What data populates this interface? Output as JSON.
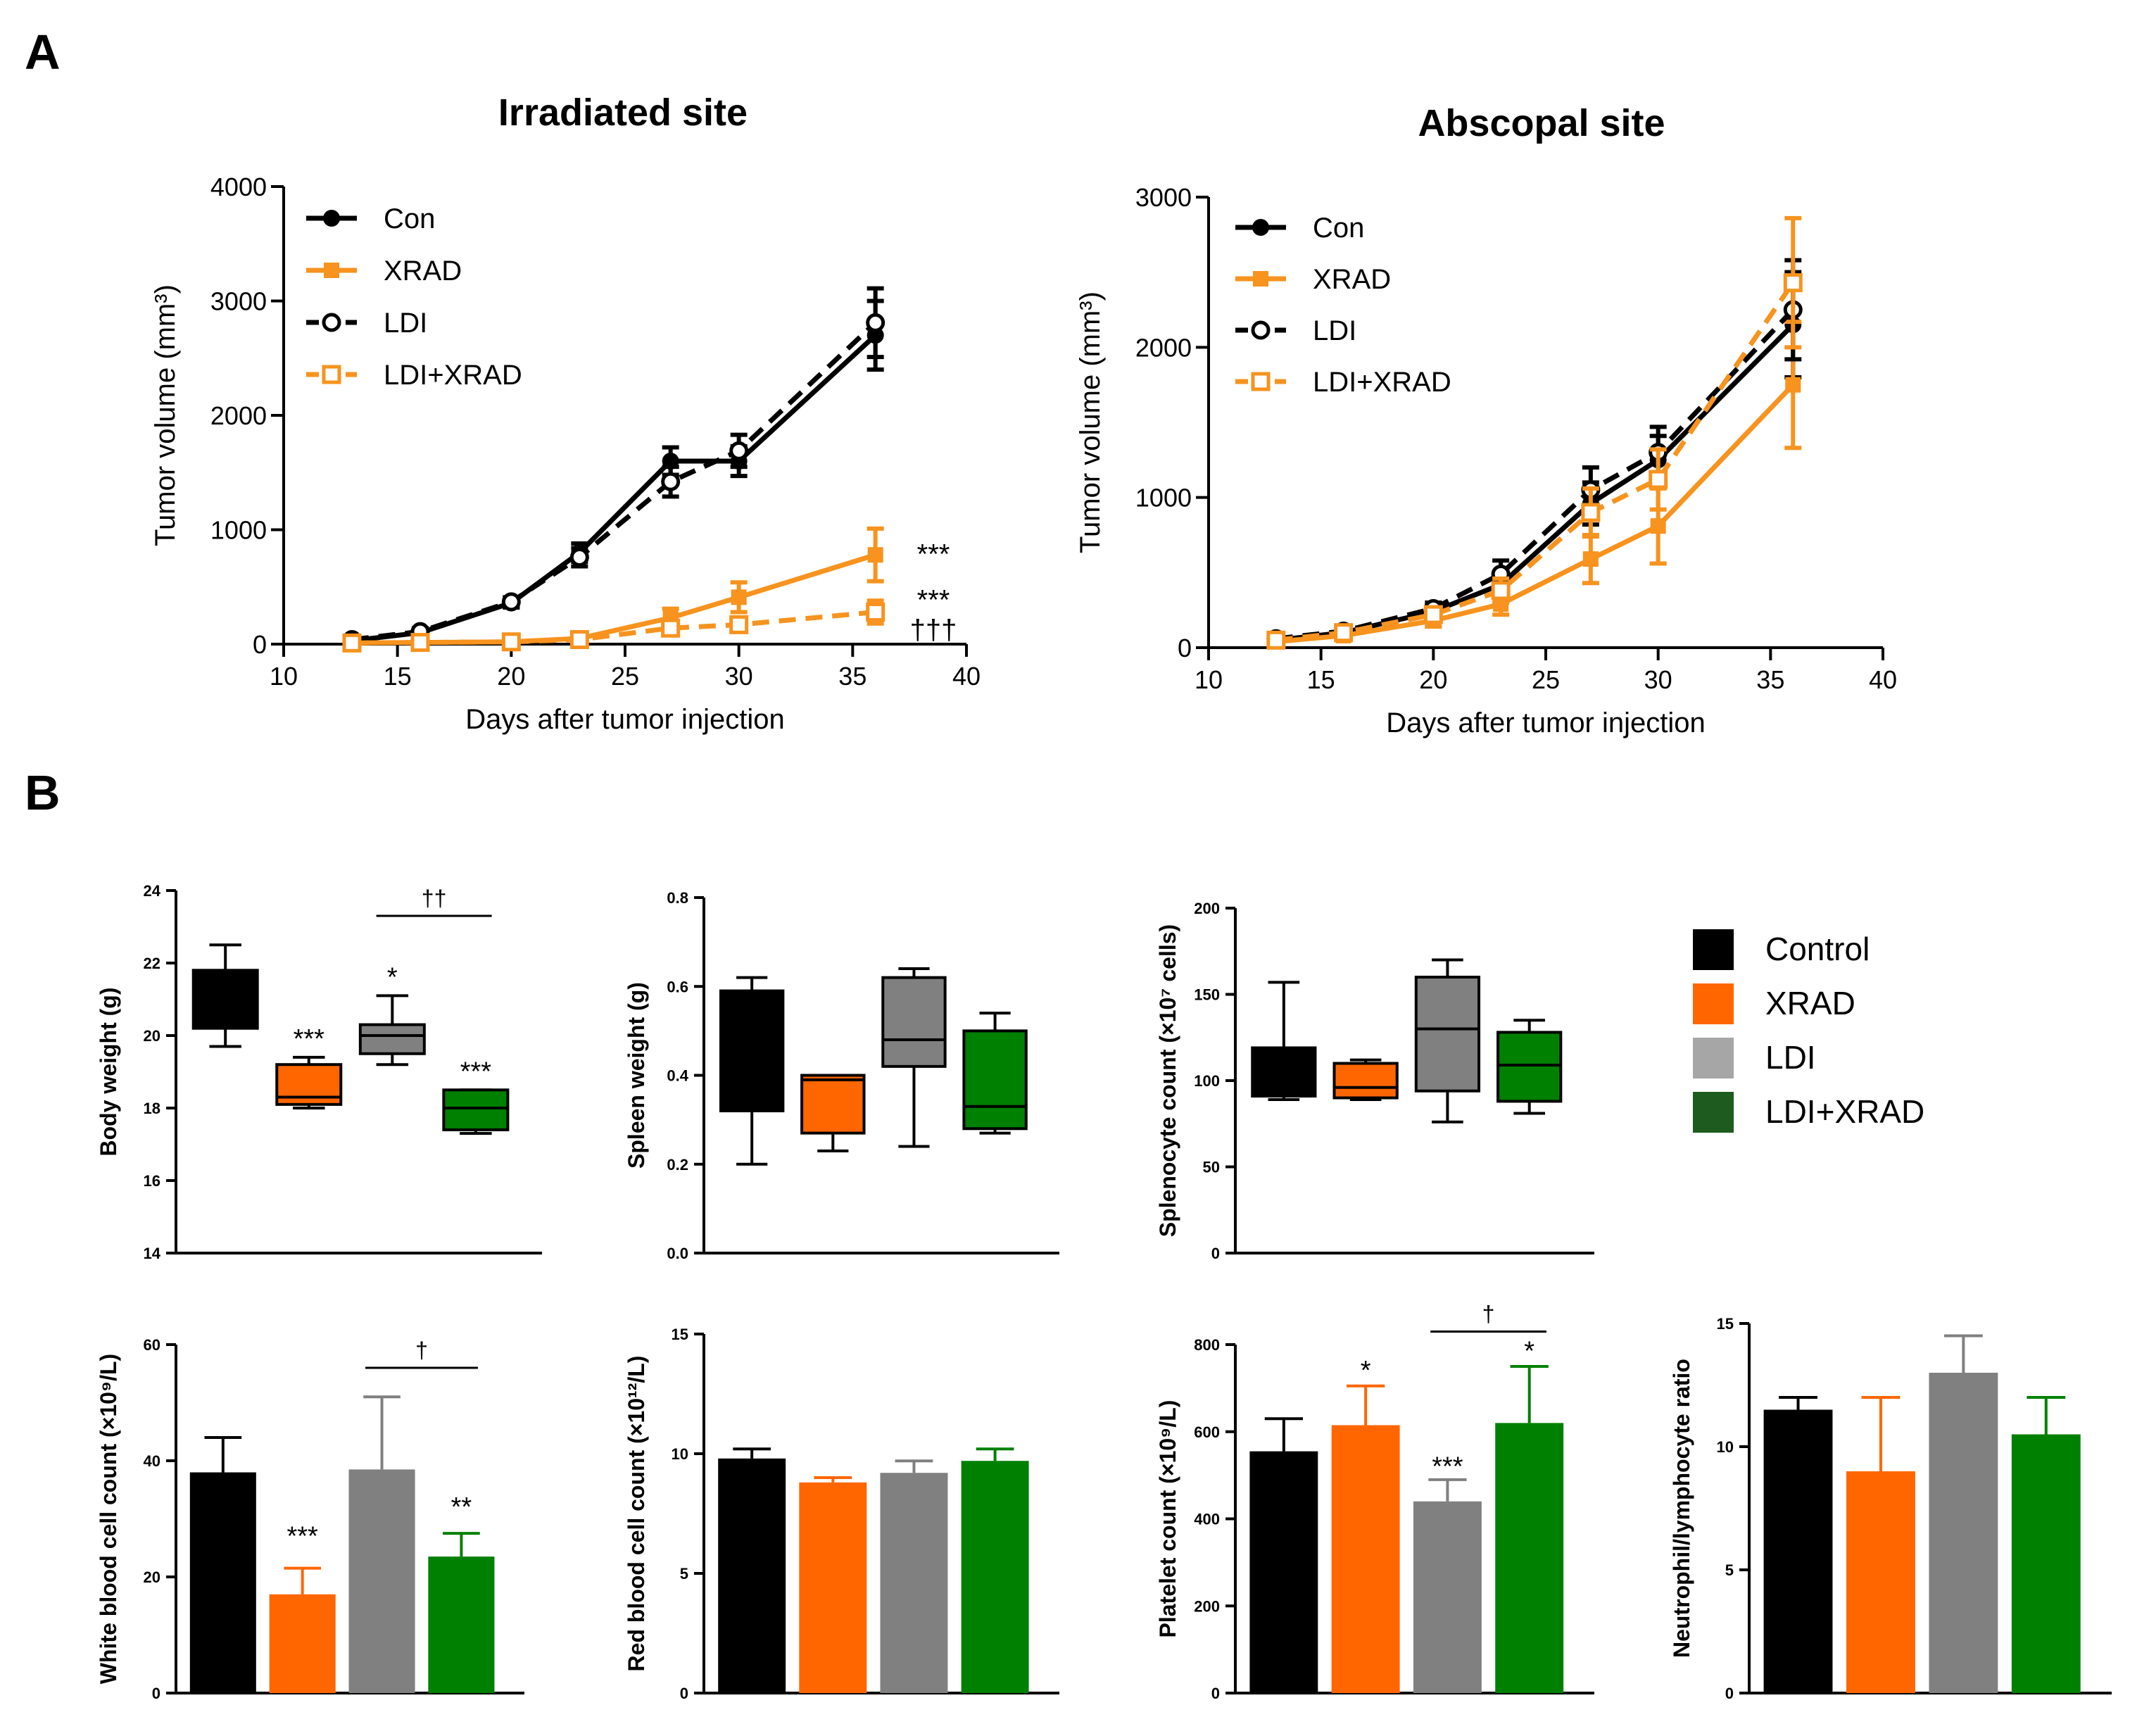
{
  "colors": {
    "con": "#000000",
    "xrad": "#F7931E",
    "bx_control": "#000000",
    "bx_xrad": "#FF6600",
    "bx_ldi": "#808080",
    "bx_ldixrad": "#008000",
    "legend_ldi": "#A6A6A6",
    "legend_ldixrad": "#1E5B1E"
  },
  "panel_labels": {
    "a": "A",
    "b": "B"
  },
  "legend_b": {
    "items": [
      {
        "label": "Control",
        "color_key": "bx_control"
      },
      {
        "label": "XRAD",
        "color_key": "bx_xrad"
      },
      {
        "label": "LDI",
        "color_key": "legend_ldi"
      },
      {
        "label": "LDI+XRAD",
        "color_key": "legend_ldixrad"
      }
    ]
  },
  "chart_data": [
    {
      "id": "irr",
      "type": "line",
      "title": "Irradiated site",
      "xlabel": "Days after tumor injection",
      "ylabel": "Tumor volume (mm³)",
      "xlim": [
        10,
        40
      ],
      "ylim": [
        0,
        4000
      ],
      "xticks": [
        10,
        15,
        20,
        25,
        30,
        35,
        40
      ],
      "yticks": [
        0,
        1000,
        2000,
        3000,
        4000
      ],
      "legend": [
        "Con",
        "XRAD",
        "LDI",
        "LDI+XRAD"
      ],
      "series": [
        {
          "name": "Con",
          "color_key": "con",
          "dash": false,
          "marker": "filled-circle",
          "x": [
            13,
            16,
            20,
            23,
            27,
            30,
            36
          ],
          "y": [
            30,
            100,
            360,
            800,
            1600,
            1600,
            2700
          ],
          "err": [
            20,
            30,
            40,
            80,
            120,
            130,
            300
          ]
        },
        {
          "name": "XRAD",
          "color_key": "xrad",
          "dash": false,
          "marker": "filled-square",
          "x": [
            13,
            16,
            20,
            23,
            27,
            30,
            36
          ],
          "y": [
            10,
            15,
            20,
            50,
            230,
            410,
            780
          ],
          "err": [
            5,
            5,
            10,
            30,
            80,
            130,
            230
          ]
        },
        {
          "name": "LDI",
          "color_key": "con",
          "dash": true,
          "marker": "open-circle",
          "x": [
            13,
            16,
            20,
            23,
            27,
            30,
            36
          ],
          "y": [
            40,
            110,
            370,
            760,
            1420,
            1690,
            2810
          ],
          "err": [
            20,
            30,
            40,
            80,
            130,
            140,
            300
          ]
        },
        {
          "name": "LDI+XRAD",
          "color_key": "xrad",
          "dash": true,
          "marker": "open-square",
          "x": [
            13,
            16,
            20,
            23,
            27,
            30,
            36
          ],
          "y": [
            10,
            15,
            20,
            40,
            140,
            170,
            280
          ],
          "err": [
            5,
            5,
            10,
            20,
            60,
            60,
            100
          ]
        }
      ],
      "annotations": [
        {
          "text": "***",
          "x": 37,
          "y": 790
        },
        {
          "text": "***",
          "x": 37,
          "y": 390
        },
        {
          "text": "†††",
          "x": 37,
          "y": 130
        }
      ]
    },
    {
      "id": "abs",
      "type": "line",
      "title": "Abscopal site",
      "xlabel": "Days after tumor injection",
      "ylabel": "Tumor volume (mm³)",
      "xlim": [
        10,
        40
      ],
      "ylim": [
        0,
        3000
      ],
      "xticks": [
        10,
        15,
        20,
        25,
        30,
        35,
        40
      ],
      "yticks": [
        0,
        1000,
        2000,
        3000
      ],
      "legend": [
        "Con",
        "XRAD",
        "LDI",
        "LDI+XRAD"
      ],
      "series": [
        {
          "name": "Con",
          "color_key": "con",
          "dash": false,
          "marker": "filled-circle",
          "x": [
            13,
            16,
            20,
            23,
            27,
            30,
            36
          ],
          "y": [
            50,
            100,
            240,
            420,
            960,
            1250,
            2150
          ],
          "err": [
            20,
            30,
            40,
            80,
            140,
            160,
            350
          ]
        },
        {
          "name": "XRAD",
          "color_key": "xrad",
          "dash": false,
          "marker": "filled-square",
          "x": [
            13,
            16,
            20,
            23,
            27,
            30,
            36
          ],
          "y": [
            40,
            80,
            180,
            290,
            590,
            810,
            1750
          ],
          "err": [
            20,
            30,
            40,
            70,
            160,
            250,
            420
          ]
        },
        {
          "name": "LDI",
          "color_key": "con",
          "dash": true,
          "marker": "open-circle",
          "x": [
            13,
            16,
            20,
            23,
            27,
            30,
            36
          ],
          "y": [
            60,
            110,
            260,
            490,
            1050,
            1300,
            2250
          ],
          "err": [
            20,
            30,
            40,
            90,
            150,
            170,
            330
          ]
        },
        {
          "name": "LDI+XRAD",
          "color_key": "xrad",
          "dash": true,
          "marker": "open-square",
          "x": [
            13,
            16,
            20,
            23,
            27,
            30,
            36
          ],
          "y": [
            50,
            100,
            220,
            380,
            900,
            1120,
            2430
          ],
          "err": [
            20,
            30,
            40,
            80,
            160,
            200,
            430
          ]
        }
      ]
    },
    {
      "id": "bw",
      "type": "box",
      "ylabel": "Body weight (g)",
      "ylim": [
        14,
        24
      ],
      "yticks": [
        14,
        16,
        18,
        20,
        22,
        24
      ],
      "boxes": [
        {
          "group": "Control",
          "color_key": "bx_control",
          "min": 19.7,
          "q1": 20.2,
          "median": 20.3,
          "q3": 21.8,
          "max": 22.5
        },
        {
          "group": "XRAD",
          "color_key": "bx_xrad",
          "min": 18.0,
          "q1": 18.1,
          "median": 18.3,
          "q3": 19.2,
          "max": 19.4
        },
        {
          "group": "LDI",
          "color_key": "bx_ldi",
          "min": 19.2,
          "q1": 19.5,
          "median": 20.0,
          "q3": 20.3,
          "max": 21.1
        },
        {
          "group": "LDI+XRAD",
          "color_key": "bx_ldixrad",
          "min": 17.3,
          "q1": 17.4,
          "median": 18.0,
          "q3": 18.5,
          "max": 18.5
        }
      ],
      "marks": [
        {
          "text": "***",
          "group": 1,
          "y": 19.9
        },
        {
          "text": "*",
          "group": 2,
          "y": 21.6
        },
        {
          "text": "***",
          "group": 3,
          "y": 19.0
        }
      ],
      "brackets": [
        {
          "text": "††",
          "from": 2,
          "to": 3,
          "y": 23.3
        }
      ]
    },
    {
      "id": "sw",
      "type": "box",
      "ylabel": "Spleen weight (g)",
      "ylim": [
        0,
        0.8
      ],
      "yticks": [
        0.0,
        0.2,
        0.4,
        0.6,
        0.8
      ],
      "boxes": [
        {
          "group": "Control",
          "color_key": "bx_control",
          "min": 0.2,
          "q1": 0.32,
          "median": 0.32,
          "q3": 0.59,
          "max": 0.62
        },
        {
          "group": "XRAD",
          "color_key": "bx_xrad",
          "min": 0.23,
          "q1": 0.27,
          "median": 0.39,
          "q3": 0.4,
          "max": 0.4
        },
        {
          "group": "LDI",
          "color_key": "bx_ldi",
          "min": 0.24,
          "q1": 0.42,
          "median": 0.48,
          "q3": 0.62,
          "max": 0.64
        },
        {
          "group": "LDI+XRAD",
          "color_key": "bx_ldixrad",
          "min": 0.27,
          "q1": 0.28,
          "median": 0.33,
          "q3": 0.5,
          "max": 0.54
        }
      ]
    },
    {
      "id": "sc",
      "type": "box",
      "ylabel": "Splenocyte count (×10⁷ cells)",
      "ylim": [
        0,
        200
      ],
      "yticks": [
        0,
        50,
        100,
        150,
        200
      ],
      "boxes": [
        {
          "group": "Control",
          "color_key": "bx_control",
          "min": 89,
          "q1": 91,
          "median": 91,
          "q3": 119,
          "max": 157
        },
        {
          "group": "XRAD",
          "color_key": "bx_xrad",
          "min": 89,
          "q1": 90,
          "median": 96,
          "q3": 110,
          "max": 112
        },
        {
          "group": "LDI",
          "color_key": "bx_ldi",
          "min": 76,
          "q1": 94,
          "median": 130,
          "q3": 160,
          "max": 170
        },
        {
          "group": "LDI+XRAD",
          "color_key": "bx_ldixrad",
          "min": 81,
          "q1": 88,
          "median": 109,
          "q3": 128,
          "max": 135
        }
      ]
    },
    {
      "id": "wbc",
      "type": "bar",
      "ylabel": "White blood cell count (×10⁹/L)",
      "ylim": [
        0,
        60
      ],
      "yticks": [
        0,
        20,
        40,
        60
      ],
      "categories": [
        "Control",
        "XRAD",
        "LDI",
        "LDI+XRAD"
      ],
      "color_keys": [
        "bx_control",
        "bx_xrad",
        "bx_ldi",
        "bx_ldixrad"
      ],
      "values": [
        38,
        17,
        38.5,
        23.5
      ],
      "err": [
        6,
        4.5,
        12.5,
        4
      ],
      "marks": [
        {
          "text": "***",
          "group": 1,
          "y": 27
        },
        {
          "text": "**",
          "group": 3,
          "y": 32
        }
      ],
      "brackets": [
        {
          "text": "†",
          "from": 2,
          "to": 3,
          "y": 56
        }
      ]
    },
    {
      "id": "rbc",
      "type": "bar",
      "ylabel": "Red blood cell count (×10¹²/L)",
      "ylim": [
        0,
        15
      ],
      "yticks": [
        0,
        5,
        10,
        15
      ],
      "categories": [
        "Control",
        "XRAD",
        "LDI",
        "LDI+XRAD"
      ],
      "color_keys": [
        "bx_control",
        "bx_xrad",
        "bx_ldi",
        "bx_ldixrad"
      ],
      "values": [
        9.8,
        8.8,
        9.2,
        9.7
      ],
      "err": [
        0.4,
        0.2,
        0.5,
        0.5
      ]
    },
    {
      "id": "plt",
      "type": "bar",
      "ylabel": "Platelet count (×10⁹/L)",
      "ylim": [
        0,
        800
      ],
      "yticks": [
        0,
        200,
        400,
        600,
        800
      ],
      "categories": [
        "Control",
        "XRAD",
        "LDI",
        "LDI+XRAD"
      ],
      "color_keys": [
        "bx_control",
        "bx_xrad",
        "bx_ldi",
        "bx_ldixrad"
      ],
      "values": [
        555,
        615,
        440,
        620
      ],
      "err": [
        75,
        90,
        50,
        130
      ],
      "marks": [
        {
          "text": "*",
          "group": 1,
          "y": 740
        },
        {
          "text": "***",
          "group": 2,
          "y": 520
        },
        {
          "text": "*",
          "group": 3,
          "y": 785
        }
      ],
      "brackets": [
        {
          "text": "†",
          "from": 2,
          "to": 3,
          "y": 830
        }
      ]
    },
    {
      "id": "nlr",
      "type": "bar",
      "ylabel": "Neutrophil/lymphocyte ratio",
      "ylim": [
        0,
        15
      ],
      "yticks": [
        0,
        5,
        10,
        15
      ],
      "categories": [
        "Control",
        "XRAD",
        "LDI",
        "LDI+XRAD"
      ],
      "color_keys": [
        "bx_control",
        "bx_xrad",
        "bx_ldi",
        "bx_ldixrad"
      ],
      "values": [
        11.5,
        9.0,
        13.0,
        10.5
      ],
      "err": [
        0.5,
        3.0,
        1.5,
        1.5
      ]
    }
  ]
}
